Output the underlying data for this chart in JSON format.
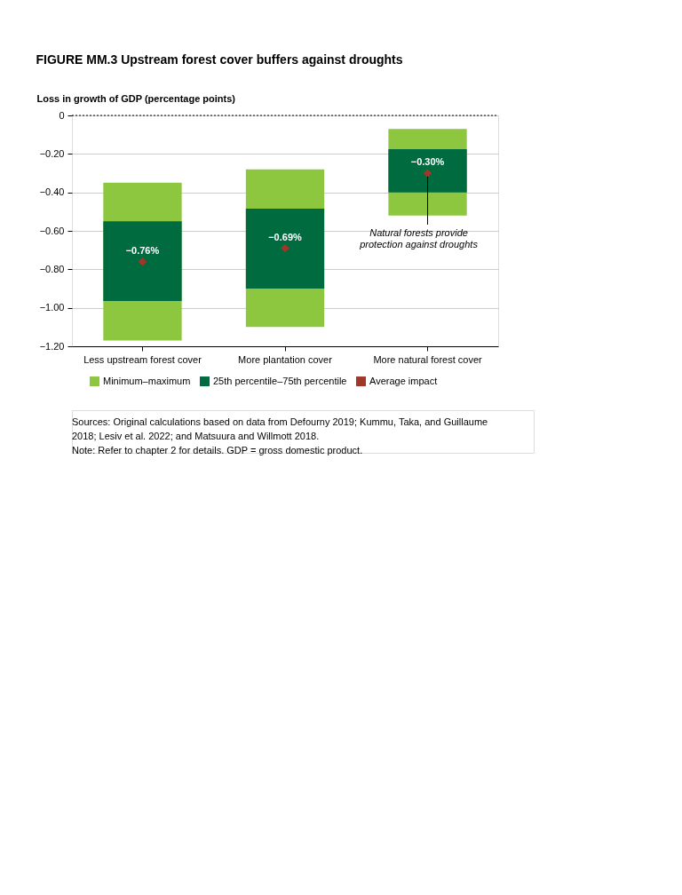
{
  "chart_data": {
    "type": "bar",
    "title": "FIGURE MM.3 Upstream forest cover buffers against droughts",
    "ylabel": "Loss in growth of GDP (percentage points)",
    "categories": [
      "Less upstream forest cover",
      "More plantation cover",
      "More natural forest cover"
    ],
    "series": [
      {
        "name": "Minimum–maximum",
        "color": "#8dc63f",
        "base": [
          -1.17,
          -1.1,
          -0.52
        ],
        "values": [
          0.82,
          0.82,
          0.45
        ]
      },
      {
        "name": "25th percentile–75th percentile",
        "color": "#006b3f",
        "base": [
          -0.965,
          -0.9,
          -0.4
        ],
        "values": [
          0.415,
          0.415,
          0.225
        ]
      },
      {
        "name": "Average impact",
        "type": "scatter",
        "marker": "diamond",
        "color": "#a0372a",
        "values": [
          -0.76,
          -0.69,
          -0.3
        ],
        "value_labels": [
          "−0.76%",
          "−0.69%",
          "−0.30%"
        ]
      }
    ],
    "ylim": [
      -1.2,
      0
    ],
    "yticks": [
      {
        "value": -1.2,
        "label": "−1.20"
      },
      {
        "value": -1.0,
        "label": "−1.00"
      },
      {
        "value": -0.8,
        "label": "−0.80"
      },
      {
        "value": -0.6,
        "label": "−0.60"
      },
      {
        "value": -0.4,
        "label": "−0.40"
      },
      {
        "value": -0.2,
        "label": "−0.20"
      },
      0
    ],
    "grid": "y",
    "legend": "bottom",
    "annotations": [
      {
        "text": "Natural forests provide protection against droughts",
        "x": "More natural forest cover",
        "y": -0.3
      },
      "Sources: Original calculations based on data from Defourny 2019; Kummu, Taka, and Guillaume 2018; Lesiv et al. 2022; and Matsuura and Willmott 2018.",
      "Note: Refer to chapter 2 for details. GDP = gross domestic product."
    ]
  }
}
